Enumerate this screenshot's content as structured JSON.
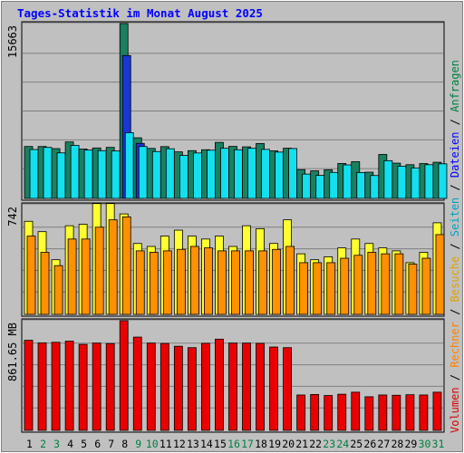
{
  "chart_data": {
    "type": "bar",
    "title": "Tages-Statistik im Monat August 2025",
    "categories": [
      "1",
      "2",
      "3",
      "4",
      "5",
      "6",
      "7",
      "8",
      "9",
      "10",
      "11",
      "12",
      "13",
      "14",
      "15",
      "16",
      "17",
      "18",
      "19",
      "20",
      "21",
      "22",
      "23",
      "24",
      "25",
      "26",
      "27",
      "28",
      "29",
      "30",
      "31"
    ],
    "weekend_days": [
      "2",
      "3",
      "9",
      "10",
      "16",
      "17",
      "23",
      "24",
      "30",
      "31"
    ],
    "panels": [
      {
        "id": "top",
        "max_label": "15663",
        "ylim": [
          0,
          15663
        ],
        "series": [
          {
            "name": "Anfragen",
            "color": "#1a8060",
            "values": [
              4650,
              4650,
              4460,
              5060,
              4420,
              4520,
              4570,
              15663,
              5430,
              4480,
              4640,
              4170,
              4280,
              4360,
              5020,
              4660,
              4620,
              4920,
              4260,
              4500,
              2580,
              2470,
              2570,
              3130,
              3290,
              2350,
              3940,
              3160,
              3020,
              3120,
              3240
            ]
          },
          {
            "name": "Dateien",
            "color": "#1a35d8",
            "values": [
              0,
              0,
              0,
              0,
              0,
              0,
              0,
              12800,
              4930,
              0,
              0,
              0,
              0,
              0,
              0,
              0,
              0,
              0,
              0,
              0,
              0,
              0,
              0,
              0,
              0,
              0,
              0,
              0,
              0,
              0,
              0
            ]
          },
          {
            "name": "Seiten",
            "color": "#12e0ef",
            "values": [
              4380,
              4570,
              4080,
              4750,
              4330,
              4280,
              4250,
              5890,
              4650,
              4200,
              4450,
              3850,
              4070,
              4320,
              4490,
              4360,
              4490,
              4390,
              4150,
              4470,
              2180,
              2060,
              2330,
              3000,
              2320,
              2050,
              3380,
              2880,
              2730,
              3020,
              3100
            ]
          }
        ]
      },
      {
        "id": "middle",
        "max_label": "742",
        "ylim": [
          0,
          742
        ],
        "series": [
          {
            "name": "Besuche",
            "color": "#ffff30",
            "values": [
              630,
              560,
              370,
              600,
              610,
              750,
              750,
              680,
              480,
              460,
              530,
              570,
              530,
              510,
              530,
              460,
              600,
              580,
              480,
              640,
              410,
              370,
              390,
              450,
              510,
              480,
              450,
              430,
              350,
              420,
              620
            ]
          },
          {
            "name": "Rechner",
            "color": "#ff9000",
            "values": [
              530,
              420,
              330,
              510,
              510,
              590,
              640,
              660,
              430,
              420,
              430,
              440,
              460,
              450,
              430,
              430,
              430,
              430,
              440,
              460,
              350,
              350,
              350,
              380,
              400,
              420,
              410,
              410,
              340,
              380,
              540
            ]
          }
        ]
      },
      {
        "id": "bottom",
        "max_label": "861.65 MB",
        "ylim": [
          0,
          861.65
        ],
        "series": [
          {
            "name": "Volumen",
            "color": "#ea0000",
            "values": [
              708,
              688,
              692,
              701,
              676,
              686,
              682,
              861.65,
              733,
              686,
              683,
              661,
              650,
              684,
              717,
              686,
              686,
              684,
              655,
              650,
              278,
              282,
              274,
              284,
              300,
              264,
              278,
              276,
              280,
              278,
              300
            ]
          }
        ]
      }
    ],
    "legend": {
      "placement": "right-vertical",
      "entries": [
        {
          "text": "Volumen",
          "color": "#d80000"
        },
        {
          "text": "Rechner",
          "color": "#ff8000"
        },
        {
          "text": "Besuche",
          "color": "#e0a000"
        },
        {
          "text": "Seiten",
          "color": "#00a0c0"
        },
        {
          "text": "Dateien",
          "color": "#0000ff"
        },
        {
          "text": "Anfragen",
          "color": "#008040"
        }
      ],
      "separator": " / "
    }
  },
  "colors": {
    "background": "#c0c0c0",
    "plot_background": "#c0c0c0",
    "title": "#0000ff",
    "weekday_label": "#000000",
    "weekend_label": "#008040",
    "gridline": "#7f7f7f"
  }
}
